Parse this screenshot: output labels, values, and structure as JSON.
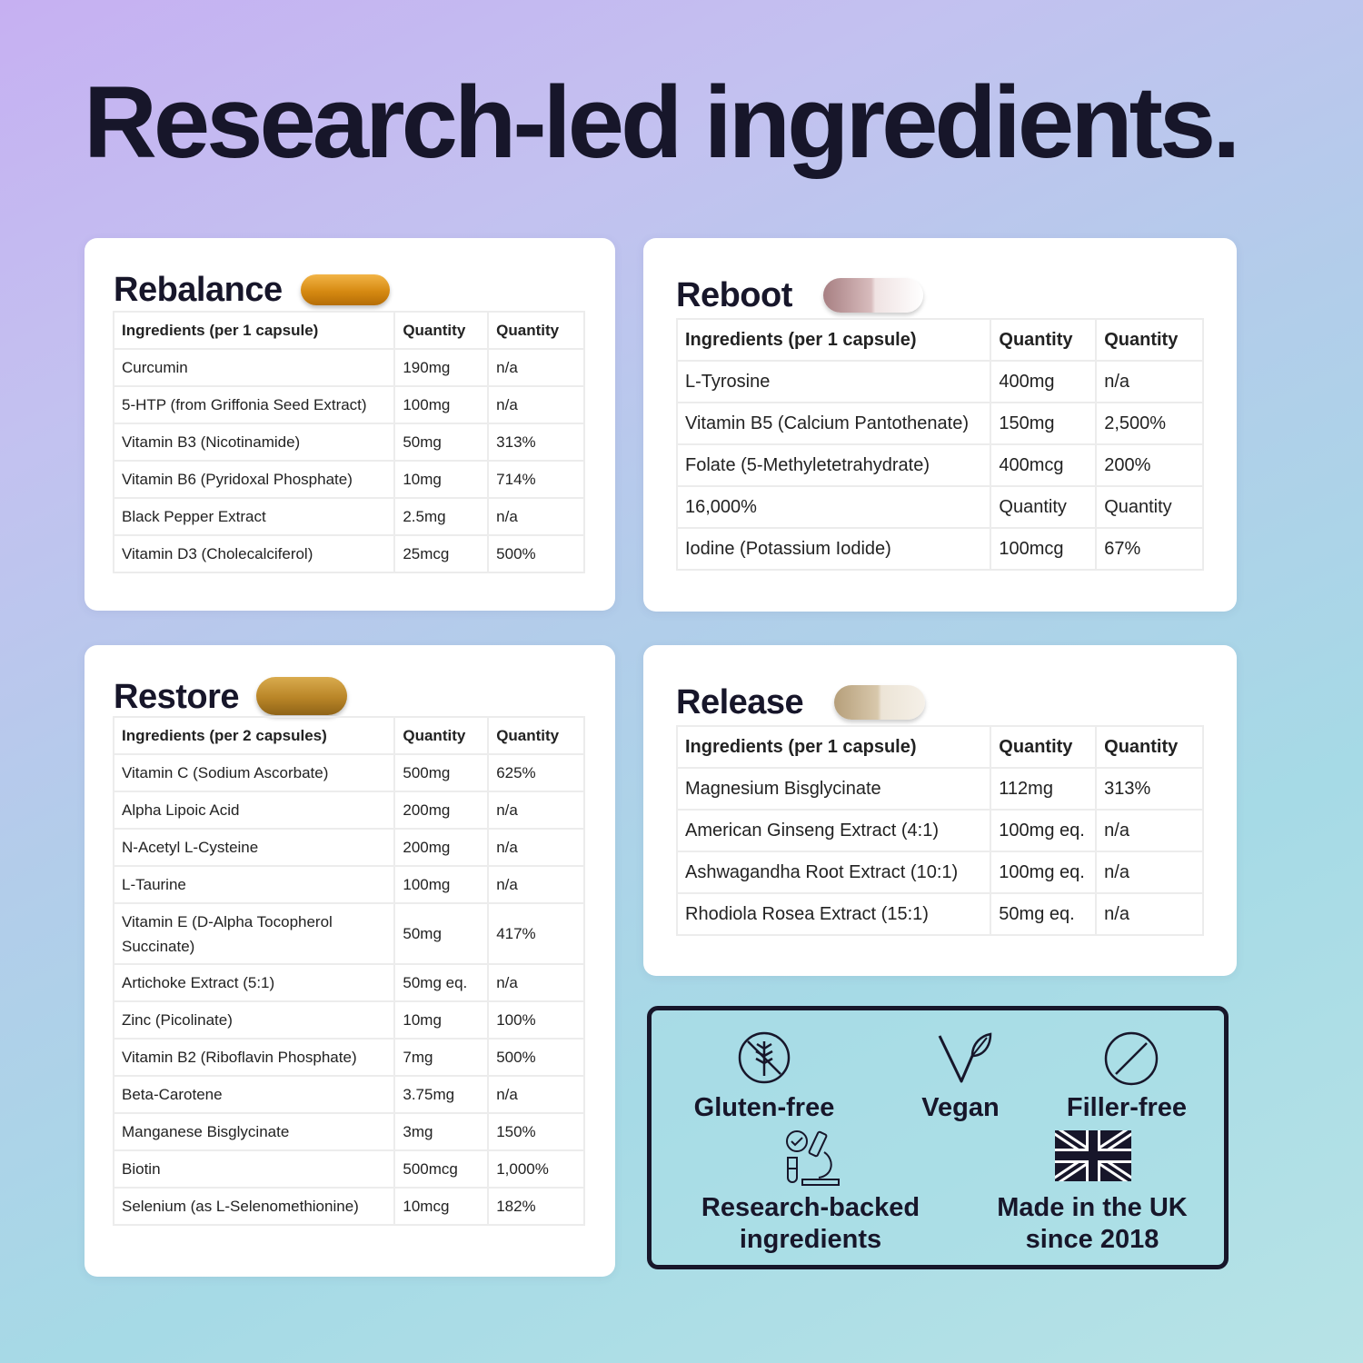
{
  "headline": "Research-led ingredients.",
  "accent_color": "#17162a",
  "cards": {
    "rebalance": {
      "title": "Rebalance",
      "capsule_color": "#e09a22",
      "header": [
        "Ingredients (per 1 capsule)",
        "Quantity",
        "Quantity"
      ],
      "rows": [
        [
          "Curcumin",
          "190mg",
          "n/a"
        ],
        [
          "5-HTP (from Griffonia Seed Extract)",
          "100mg",
          "n/a"
        ],
        [
          "Vitamin B3 (Nicotinamide)",
          "50mg",
          "313%"
        ],
        [
          "Vitamin B6 (Pyridoxal Phosphate)",
          "10mg",
          "714%"
        ],
        [
          "Black Pepper Extract",
          "2.5mg",
          "n/a"
        ],
        [
          "Vitamin D3 (Cholecalciferol)",
          "25mcg",
          "500%"
        ]
      ]
    },
    "reboot": {
      "title": "Reboot",
      "capsule_color": "#c9a6a6",
      "header": [
        "Ingredients (per 1 capsule)",
        "Quantity",
        "Quantity"
      ],
      "rows": [
        [
          "L-Tyrosine",
          "400mg",
          "n/a"
        ],
        [
          "Vitamin B5 (Calcium Pantothenate)",
          "150mg",
          "2,500%"
        ],
        [
          "Folate (5-Methyletetrahydrate)",
          "400mcg",
          "200%"
        ],
        [
          "16,000%",
          "Quantity",
          "Quantity"
        ],
        [
          "Iodine (Potassium Iodide)",
          "100mcg",
          "67%"
        ]
      ]
    },
    "restore": {
      "title": "Restore",
      "capsule_color": "#c9962e",
      "header": [
        "Ingredients (per 2 capsules)",
        "Quantity",
        "Quantity"
      ],
      "rows": [
        [
          "Vitamin C (Sodium Ascorbate)",
          "500mg",
          "625%"
        ],
        [
          "Alpha Lipoic Acid",
          "200mg",
          "n/a"
        ],
        [
          "N-Acetyl L-Cysteine",
          "200mg",
          "n/a"
        ],
        [
          "L-Taurine",
          "100mg",
          "n/a"
        ],
        [
          "Vitamin E (D-Alpha Tocopherol Succinate)",
          "50mg",
          "417%"
        ],
        [
          "Artichoke Extract (5:1)",
          "50mg eq.",
          "n/a"
        ],
        [
          "Zinc (Picolinate)",
          "10mg",
          "100%"
        ],
        [
          "Vitamin B2 (Riboflavin Phosphate)",
          "7mg",
          "500%"
        ],
        [
          "Beta-Carotene",
          "3.75mg",
          "n/a"
        ],
        [
          "Manganese Bisglycinate",
          "3mg",
          "150%"
        ],
        [
          "Biotin",
          "500mcg",
          "1,000%"
        ],
        [
          "Selenium (as L-Selenomethionine)",
          "10mcg",
          "182%"
        ]
      ]
    },
    "release": {
      "title": "Release",
      "capsule_color": "#c9b89a",
      "header": [
        "Ingredients (per 1 capsule)",
        "Quantity",
        "Quantity"
      ],
      "rows": [
        [
          "Magnesium Bisglycinate",
          "112mg",
          "313%"
        ],
        [
          "American Ginseng Extract (4:1)",
          "100mg eq.",
          "n/a"
        ],
        [
          "Ashwagandha Root Extract (10:1)",
          "100mg eq.",
          "n/a"
        ],
        [
          "Rhodiola Rosea Extract (15:1)",
          "50mg eq.",
          "n/a"
        ]
      ]
    }
  },
  "badges": {
    "gluten_free": "Gluten-free",
    "vegan": "Vegan",
    "filler_free": "Filler-free",
    "research_line1": "Research-backed",
    "research_line2": "ingredients",
    "uk_line1": "Made in the UK",
    "uk_line2": "since 2018",
    "icons": [
      "wheat-crossed-icon",
      "leaf-v-icon",
      "prohibited-icon",
      "microscope-icon",
      "union-jack-icon"
    ]
  }
}
